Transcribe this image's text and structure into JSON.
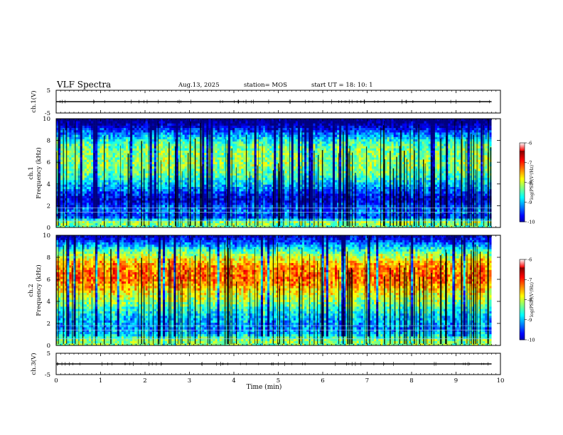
{
  "header": {
    "title": "VLF Spectra",
    "date": "Aug.13, 2025",
    "station": "station= MOS",
    "start_ut": "start  UT  =   18: 10: 1"
  },
  "chart_data": [
    {
      "type": "line",
      "panel": "ch1-waveform",
      "ylabel": "ch.1(V)",
      "ylim": [
        -5,
        5
      ],
      "yticks": [
        "5",
        "-5"
      ],
      "x": [
        0,
        9.8
      ],
      "series": [
        {
          "values": [
            0,
            0
          ]
        }
      ]
    },
    {
      "type": "heatmap",
      "panel": "ch1-spectrogram",
      "ylabel": "ch.1\nFrequency (kHz)",
      "ylim": [
        0,
        10
      ],
      "yticks": [
        "0",
        "2",
        "4",
        "6",
        "8",
        "10"
      ],
      "xlim": [
        0,
        10
      ],
      "data_end_min": 9.8,
      "colorbar": {
        "label": "log(PSD)(V²/Hz)",
        "range": [
          -10,
          -6
        ],
        "ticks": [
          "-6",
          "-7",
          "-8",
          "-9",
          "-10"
        ]
      },
      "profile": {
        "freq_khz": [
          0,
          0.5,
          1,
          1.5,
          2,
          2.5,
          3,
          3.5,
          4,
          5,
          6,
          7,
          7.5,
          8,
          8.5,
          9,
          9.5,
          10
        ],
        "log_psd": [
          -8.2,
          -7.8,
          -9.3,
          -9.0,
          -9.2,
          -9.6,
          -9.4,
          -9.0,
          -8.7,
          -8.1,
          -7.9,
          -8.0,
          -8.1,
          -8.4,
          -8.9,
          -9.4,
          -9.9,
          -10.2
        ]
      }
    },
    {
      "type": "heatmap",
      "panel": "ch2-spectrogram",
      "ylabel": "ch.2\nFrequency (kHz)",
      "ylim": [
        0,
        10
      ],
      "yticks": [
        "0",
        "2",
        "4",
        "6",
        "8",
        "10"
      ],
      "xlim": [
        0,
        10
      ],
      "data_end_min": 9.8,
      "colorbar": {
        "label": "log(PSD)(V²/Hz)",
        "range": [
          -10,
          -6
        ],
        "ticks": [
          "-6",
          "-7",
          "-8",
          "-9",
          "-10"
        ]
      },
      "profile": {
        "freq_khz": [
          0,
          0.5,
          1,
          1.5,
          2,
          2.5,
          3,
          3.5,
          4,
          5,
          5.5,
          6,
          6.5,
          7,
          7.5,
          8,
          8.5,
          9,
          9.5,
          10
        ],
        "log_psd": [
          -8.0,
          -7.9,
          -8.6,
          -8.9,
          -8.8,
          -8.7,
          -8.5,
          -8.2,
          -7.9,
          -7.4,
          -7.1,
          -6.9,
          -6.9,
          -7.0,
          -7.2,
          -7.6,
          -8.1,
          -8.7,
          -9.3,
          -9.8
        ]
      }
    },
    {
      "type": "line",
      "panel": "ch3-waveform",
      "ylabel": "ch.3(V)",
      "ylim": [
        -5,
        5
      ],
      "yticks": [
        "5",
        "-5"
      ],
      "xlabel": "Time  (min)",
      "xlim": [
        0,
        10
      ],
      "xticks": [
        "0",
        "1",
        "2",
        "3",
        "4",
        "5",
        "6",
        "7",
        "8",
        "9",
        "10"
      ],
      "x": [
        0,
        9.8
      ],
      "series": [
        {
          "values": [
            0,
            0
          ]
        }
      ]
    }
  ]
}
